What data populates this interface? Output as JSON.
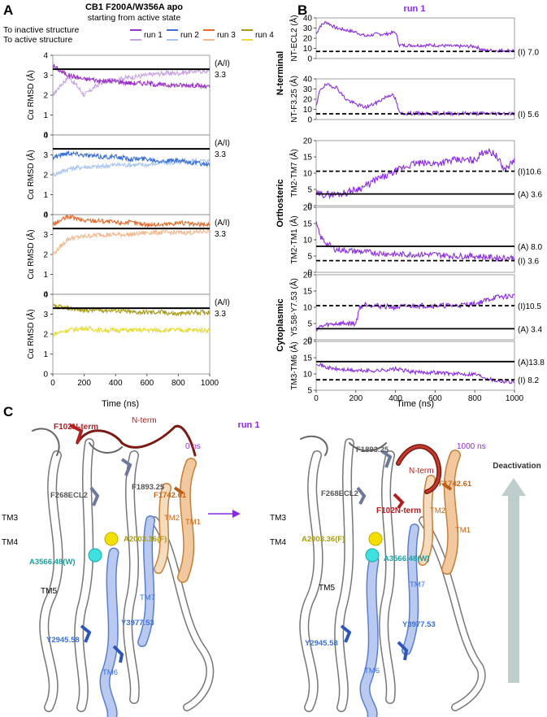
{
  "panel_A": {
    "letter": "A",
    "title": "CB1 F200A/W356A apo",
    "subtitle": "starting from active state",
    "legend_row1": "To inactive structure",
    "legend_row2": "To active structure",
    "runs": [
      "run 1",
      "run 2",
      "run 3",
      "run 4"
    ],
    "y_label": "Cα RMSD (Å)",
    "x_label": "Time (ns)",
    "ref_label": "(A/I)",
    "ref_value": "3.3"
  },
  "panel_B": {
    "letter": "B",
    "title": "run 1",
    "x_label": "Time (ns)",
    "groups": [
      "N-terminal",
      "Orthosteric",
      "Cytoplasmic"
    ],
    "ylabels": [
      "NT-ECL2 (Å)",
      "NT-F3.25 (Å)",
      "TM2-TM7 (Å)",
      "TM2-TM1 (Å)",
      "Y5.58-Y7.53 (Å)",
      "TM3-TM6 (Å)"
    ],
    "ref_labels": [
      [
        "(I) 7.0"
      ],
      [
        "(I) 5.6"
      ],
      [
        "(I)10.6",
        "(A) 3.6"
      ],
      [
        "(A) 8.0",
        "(I) 3.6"
      ],
      [
        "(I)10.5",
        "(A) 3.4"
      ],
      [
        "(A)13.8",
        "(I) 8.2"
      ]
    ]
  },
  "panel_C": {
    "letter": "C",
    "title": "run 1",
    "arrow_label": "Deactivation",
    "left": {
      "time": "0 ns",
      "labels": [
        "F102N-term",
        "N-term",
        "F1893.25",
        "F268ECL2",
        "F1742.61",
        "TM3",
        "TM2",
        "TM1",
        "TM4",
        "A2003.36(F)",
        "A3566.48(W)",
        "TM5",
        "TM7",
        "Y3977.53",
        "Y2945.58",
        "TM6"
      ]
    },
    "right": {
      "time": "1000 ns",
      "labels": [
        "N-term",
        "F1893.25",
        "F268ECL2",
        "F1742.61",
        "TM3",
        "F102N-term",
        "TM2",
        "TM1",
        "A2003.36(F)",
        "TM4",
        "A3566.48(W)",
        "TM7",
        "TM5",
        "Y3977.53",
        "Y2945.58",
        "TM6"
      ]
    }
  },
  "colors": {
    "run1_dark": "#9b30c8",
    "run1_light": "#c7a3e0",
    "run2_dark": "#3a6fd8",
    "run2_light": "#a9c6f0",
    "run3_dark": "#e36a2a",
    "run3_light": "#f3b98f",
    "run4_dark": "#a79a18",
    "run4_light": "#e6dc3c",
    "purple": "#8a2be2",
    "ref_line": "#000000"
  },
  "chart_data": [
    {
      "type": "line",
      "title": "CB1 F200A/W356A apo — run 1",
      "xlabel": "Time (ns)",
      "ylabel": "Cα RMSD (Å)",
      "xlim": [
        0,
        1000
      ],
      "ylim": [
        0,
        4
      ],
      "xticks": [
        0,
        200,
        400,
        600,
        800,
        1000
      ],
      "yticks": [
        0,
        1,
        2,
        3,
        4
      ],
      "hline": 3.3,
      "x": [
        0,
        50,
        100,
        150,
        200,
        250,
        300,
        400,
        500,
        600,
        700,
        800,
        900,
        1000
      ],
      "series": [
        {
          "name": "To inactive structure",
          "values": [
            3.5,
            3.2,
            3.0,
            2.9,
            2.8,
            2.8,
            2.7,
            2.7,
            2.6,
            2.6,
            2.5,
            2.5,
            2.5,
            2.4
          ]
        },
        {
          "name": "To active structure",
          "values": [
            2.0,
            2.5,
            2.9,
            2.5,
            2.0,
            2.3,
            2.6,
            2.8,
            2.9,
            3.0,
            3.1,
            3.1,
            3.2,
            3.2
          ]
        }
      ]
    },
    {
      "type": "line",
      "title": "run 2",
      "xlabel": "Time (ns)",
      "ylabel": "Cα RMSD (Å)",
      "xlim": [
        0,
        1000
      ],
      "ylim": [
        0,
        4
      ],
      "xticks": [
        0,
        200,
        400,
        600,
        800,
        1000
      ],
      "yticks": [
        0,
        1,
        2,
        3,
        4
      ],
      "hline": 3.3,
      "x": [
        0,
        100,
        200,
        300,
        400,
        500,
        600,
        700,
        800,
        900,
        1000
      ],
      "series": [
        {
          "name": "To inactive structure",
          "values": [
            2.9,
            3.1,
            3.0,
            2.9,
            2.9,
            2.8,
            2.8,
            2.7,
            2.7,
            2.6,
            2.5
          ]
        },
        {
          "name": "To active structure",
          "values": [
            2.0,
            2.3,
            2.4,
            2.4,
            2.5,
            2.5,
            2.5,
            2.6,
            2.6,
            2.7,
            2.7
          ]
        }
      ]
    },
    {
      "type": "line",
      "title": "run 3",
      "xlabel": "Time (ns)",
      "ylabel": "Cα RMSD (Å)",
      "xlim": [
        0,
        1000
      ],
      "ylim": [
        0,
        4
      ],
      "xticks": [
        0,
        200,
        400,
        600,
        800,
        1000
      ],
      "yticks": [
        0,
        1,
        2,
        3,
        4
      ],
      "hline": 3.3,
      "x": [
        0,
        100,
        200,
        300,
        400,
        500,
        600,
        700,
        800,
        900,
        1000
      ],
      "series": [
        {
          "name": "To inactive structure",
          "values": [
            3.5,
            3.9,
            3.7,
            3.7,
            3.6,
            3.6,
            3.5,
            3.5,
            3.6,
            3.5,
            3.5
          ]
        },
        {
          "name": "To active structure",
          "values": [
            2.0,
            2.8,
            2.9,
            3.0,
            3.0,
            3.0,
            3.1,
            3.1,
            3.1,
            3.1,
            3.2
          ]
        }
      ]
    },
    {
      "type": "line",
      "title": "run 4",
      "xlabel": "Time (ns)",
      "ylabel": "Cα RMSD (Å)",
      "xlim": [
        0,
        1000
      ],
      "ylim": [
        0,
        4
      ],
      "xticks": [
        0,
        200,
        400,
        600,
        800,
        1000
      ],
      "yticks": [
        0,
        1,
        2,
        3,
        4
      ],
      "hline": 3.3,
      "x": [
        0,
        100,
        200,
        300,
        400,
        500,
        600,
        700,
        800,
        900,
        1000
      ],
      "series": [
        {
          "name": "To inactive structure",
          "values": [
            3.4,
            3.3,
            3.2,
            3.2,
            3.2,
            3.1,
            3.1,
            3.1,
            3.0,
            3.1,
            3.1
          ]
        },
        {
          "name": "To active structure",
          "values": [
            2.0,
            2.2,
            2.3,
            2.2,
            2.2,
            2.2,
            2.2,
            2.2,
            2.2,
            2.2,
            2.2
          ]
        }
      ]
    },
    {
      "type": "line",
      "title": "run 1 — NT-ECL2",
      "ylabel": "NT-ECL2 (Å)",
      "xlabel": "Time (ns)",
      "xlim": [
        0,
        1000
      ],
      "ylim": [
        0,
        40
      ],
      "yticks": [
        0,
        10,
        20,
        30,
        40
      ],
      "x": [
        0,
        20,
        50,
        100,
        150,
        200,
        250,
        300,
        350,
        400,
        420,
        450,
        500,
        600,
        700,
        800,
        850,
        900,
        1000
      ],
      "values": [
        24,
        32,
        36,
        30,
        28,
        26,
        22,
        24,
        24,
        26,
        13,
        13,
        13,
        13,
        12,
        12,
        8,
        8,
        8
      ],
      "refs": [
        {
          "label": "(I)",
          "value": 7.0,
          "style": "dashed"
        }
      ]
    },
    {
      "type": "line",
      "title": "run 1 — NT-F3.25",
      "ylabel": "NT-F3.25 (Å)",
      "xlabel": "Time (ns)",
      "xlim": [
        0,
        1000
      ],
      "ylim": [
        0,
        40
      ],
      "yticks": [
        0,
        10,
        20,
        30,
        40
      ],
      "x": [
        0,
        20,
        50,
        100,
        150,
        200,
        250,
        300,
        350,
        380,
        400,
        420,
        500,
        600,
        700,
        800,
        900,
        1000
      ],
      "values": [
        12,
        30,
        34,
        32,
        20,
        15,
        12,
        16,
        22,
        25,
        20,
        6,
        6,
        6,
        6,
        6,
        6,
        6
      ],
      "refs": [
        {
          "label": "(I)",
          "value": 5.6,
          "style": "dashed"
        }
      ]
    },
    {
      "type": "line",
      "title": "run 1 — TM2-TM7",
      "ylabel": "TM2-TM7 (Å)",
      "xlabel": "Time (ns)",
      "xlim": [
        0,
        1000
      ],
      "ylim": [
        0,
        20
      ],
      "yticks": [
        0,
        5,
        10,
        15,
        20
      ],
      "x": [
        0,
        50,
        100,
        150,
        200,
        250,
        300,
        350,
        400,
        450,
        500,
        600,
        700,
        800,
        850,
        900,
        950,
        1000
      ],
      "values": [
        3.5,
        3.5,
        3.5,
        4,
        5,
        6,
        8,
        9,
        10.5,
        12,
        13,
        13,
        14,
        14,
        17,
        16,
        11,
        14
      ],
      "refs": [
        {
          "label": "(I)",
          "value": 10.6,
          "style": "dashed"
        },
        {
          "label": "(A)",
          "value": 3.6,
          "style": "solid"
        }
      ]
    },
    {
      "type": "line",
      "title": "run 1 — TM2-TM1",
      "ylabel": "TM2-TM1 (Å)",
      "xlabel": "Time (ns)",
      "xlim": [
        0,
        1000
      ],
      "ylim": [
        0,
        20
      ],
      "yticks": [
        0,
        5,
        10,
        15,
        20
      ],
      "x": [
        0,
        20,
        50,
        100,
        200,
        300,
        400,
        500,
        600,
        700,
        800,
        900,
        1000
      ],
      "values": [
        15,
        11,
        9,
        7,
        6.5,
        6,
        5.5,
        5.5,
        5.5,
        5,
        5,
        4.5,
        4.5
      ],
      "refs": [
        {
          "label": "(A)",
          "value": 8.0,
          "style": "solid"
        },
        {
          "label": "(I)",
          "value": 3.6,
          "style": "dashed"
        }
      ]
    },
    {
      "type": "line",
      "title": "run 1 — Y5.58-Y7.53",
      "ylabel": "Y5.58-Y7.53 (Å)",
      "xlabel": "Time (ns)",
      "xlim": [
        0,
        1000
      ],
      "ylim": [
        0,
        20
      ],
      "yticks": [
        0,
        5,
        10,
        15,
        20
      ],
      "x": [
        0,
        50,
        100,
        150,
        200,
        220,
        250,
        300,
        400,
        500,
        600,
        700,
        800,
        850,
        900,
        1000
      ],
      "values": [
        3.5,
        4.5,
        5,
        5,
        5,
        10,
        11,
        10.5,
        10,
        10.5,
        10.5,
        10.5,
        11,
        12,
        13,
        13.5
      ],
      "refs": [
        {
          "label": "(I)",
          "value": 10.5,
          "style": "dashed"
        },
        {
          "label": "(A)",
          "value": 3.4,
          "style": "solid"
        }
      ]
    },
    {
      "type": "line",
      "title": "run 1 — TM3-TM6",
      "ylabel": "TM3-TM6 (Å)",
      "xlabel": "Time (ns)",
      "xlim": [
        0,
        1000
      ],
      "ylim": [
        5,
        20
      ],
      "yticks": [
        5,
        10,
        15,
        20
      ],
      "xticks": [
        0,
        200,
        400,
        600,
        800,
        1000
      ],
      "x": [
        0,
        50,
        100,
        200,
        300,
        400,
        500,
        600,
        700,
        800,
        850,
        900,
        1000
      ],
      "values": [
        13.5,
        12,
        11.5,
        11,
        11,
        11.5,
        10.5,
        10.5,
        10,
        10,
        9,
        8,
        7.5
      ],
      "refs": [
        {
          "label": "(A)",
          "value": 13.8,
          "style": "solid"
        },
        {
          "label": "(I)",
          "value": 8.2,
          "style": "dashed"
        }
      ]
    }
  ]
}
